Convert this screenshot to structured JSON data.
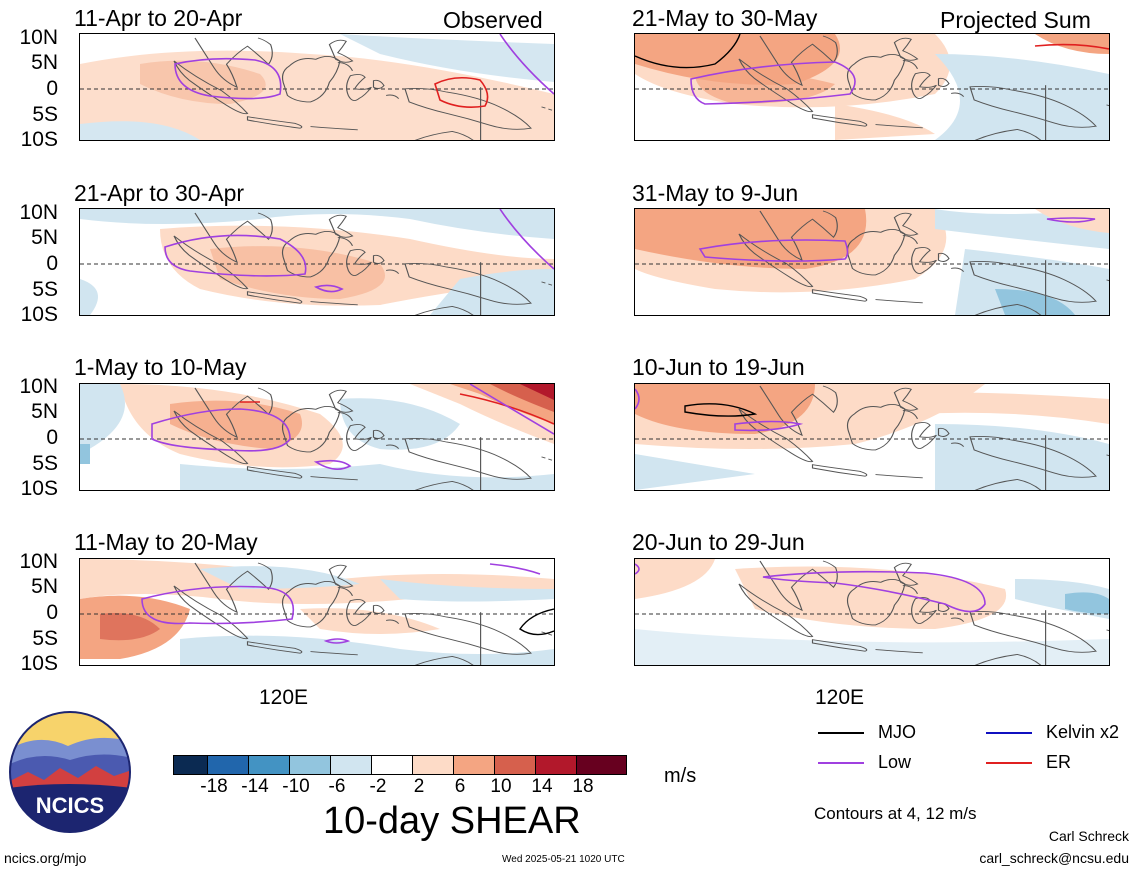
{
  "labels": {
    "observed": "Observed",
    "projected": "Projected Sum",
    "lon_left": "120E",
    "lon_right": "120E",
    "units": "m/s",
    "title": "10-day SHEAR",
    "contours": "Contours at 4, 12 m/s",
    "author": "Carl Schreck",
    "email": "carl_schreck@ncsu.edu",
    "site": "ncics.org/mjo",
    "timestamp": "Wed 2025-05-21 1020 UTC",
    "logo_text": "NCICS"
  },
  "yaxis": [
    "10N",
    "5N",
    "0",
    "5S",
    "10S"
  ],
  "panels": [
    {
      "title": "11-Apr to 20-Apr"
    },
    {
      "title": "21-Apr to 30-Apr"
    },
    {
      "title": "1-May to 10-May"
    },
    {
      "title": "11-May to 20-May"
    },
    {
      "title": "21-May to 30-May"
    },
    {
      "title": "31-May to 9-Jun"
    },
    {
      "title": "10-Jun to 19-Jun"
    },
    {
      "title": "20-Jun to 29-Jun"
    }
  ],
  "colorbar": {
    "labels": [
      "-18",
      "-14",
      "-10",
      "-6",
      "-2",
      "2",
      "6",
      "10",
      "14",
      "18"
    ],
    "colors": [
      "#0b2a52",
      "#2166ac",
      "#4393c3",
      "#92c5de",
      "#d1e5f0",
      "#ffffff",
      "#fddbc7",
      "#f4a582",
      "#d6604d",
      "#b2182b",
      "#67001f"
    ]
  },
  "legend": [
    {
      "name": "MJO",
      "color": "#000000"
    },
    {
      "name": "Kelvin x2",
      "color": "#1010c0"
    },
    {
      "name": "Low",
      "color": "#a040e0"
    },
    {
      "name": "ER",
      "color": "#e02020"
    }
  ]
}
